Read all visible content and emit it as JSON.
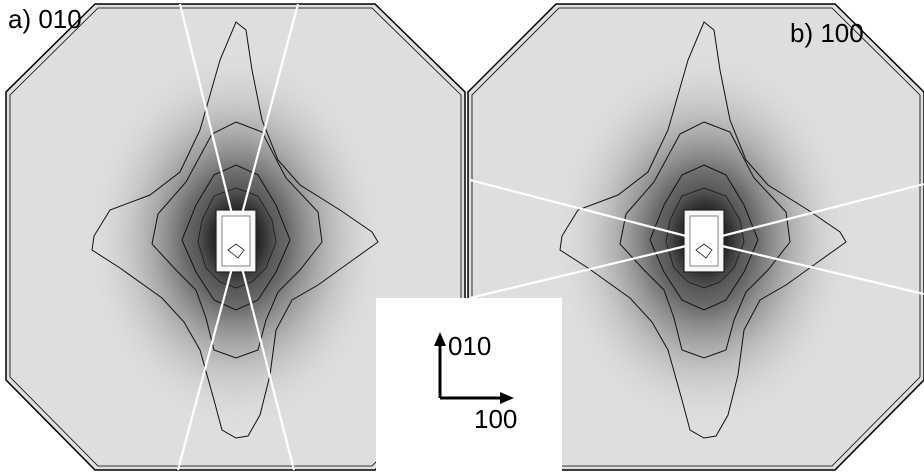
{
  "panels": [
    {
      "label": "a) 010"
    },
    {
      "label": "b) 100"
    }
  ],
  "axes_legend": {
    "vertical_label": "010",
    "horizontal_label": "100"
  }
}
